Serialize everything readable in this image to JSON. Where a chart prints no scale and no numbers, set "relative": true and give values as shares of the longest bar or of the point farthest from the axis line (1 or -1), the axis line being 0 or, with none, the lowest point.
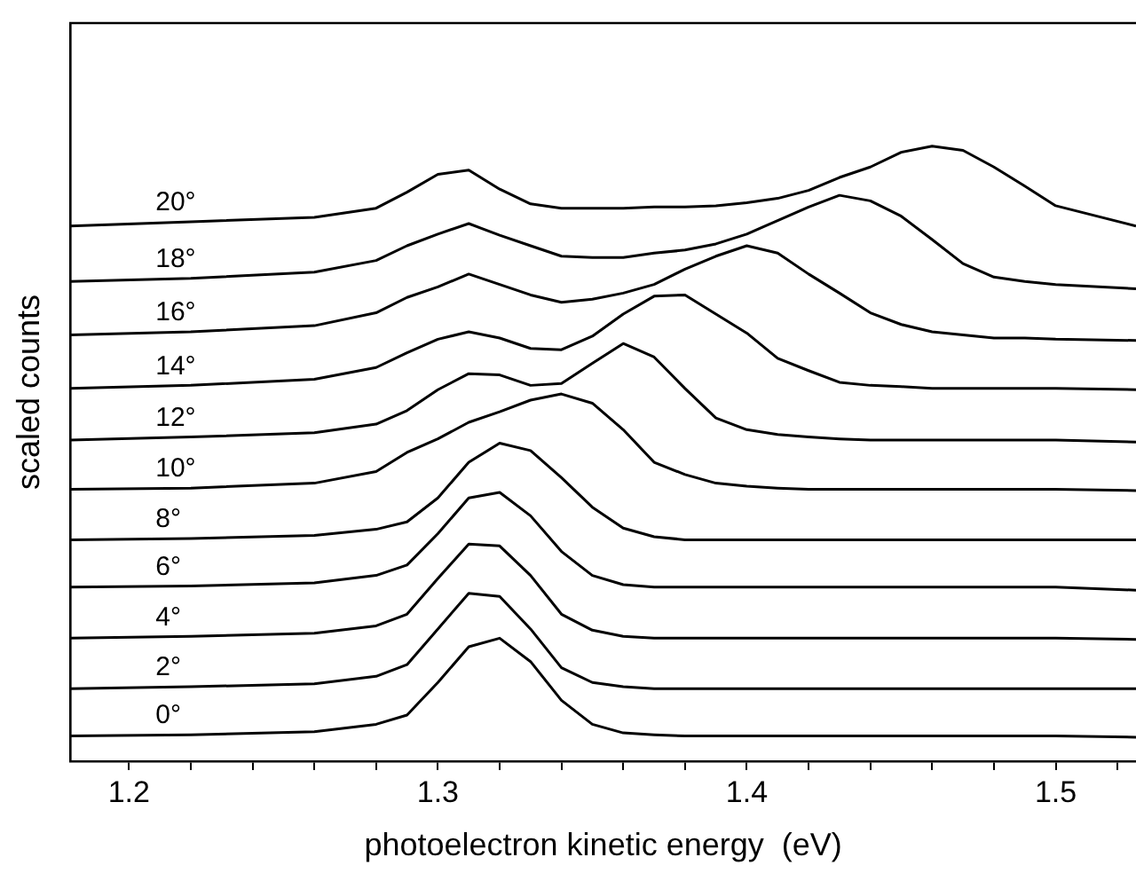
{
  "chart_data": {
    "type": "line",
    "relative": true,
    "xlabel": "photoelectron kinetic energy  (eV)",
    "ylabel": "scaled counts",
    "x": [
      1.181,
      1.22,
      1.26,
      1.28,
      1.29,
      1.3,
      1.31,
      1.32,
      1.33,
      1.34,
      1.35,
      1.36,
      1.37,
      1.38,
      1.39,
      1.4,
      1.41,
      1.42,
      1.43,
      1.44,
      1.45,
      1.46,
      1.47,
      1.48,
      1.49,
      1.5,
      1.526
    ],
    "xlim": [
      1.181,
      1.526
    ],
    "xticks": [
      1.2,
      {
        "value": 1.22,
        "label": null
      },
      {
        "value": 1.24,
        "label": null
      },
      {
        "value": 1.26,
        "label": null
      },
      {
        "value": 1.28,
        "label": null
      },
      1.3,
      {
        "value": 1.32,
        "label": null
      },
      {
        "value": 1.34,
        "label": null
      },
      {
        "value": 1.36,
        "label": null
      },
      {
        "value": 1.38,
        "label": null
      },
      1.4,
      {
        "value": 1.42,
        "label": null
      },
      {
        "value": 1.44,
        "label": null
      },
      {
        "value": 1.46,
        "label": null
      },
      {
        "value": 1.48,
        "label": null
      },
      1.5,
      {
        "value": 1.52,
        "label": null
      }
    ],
    "legend": false,
    "marker": "none",
    "line_style": "solid",
    "series": [
      {
        "name": "0°",
        "color": "#000000",
        "values": [
          0.041,
          0.043,
          0.048,
          0.06,
          0.075,
          0.128,
          0.186,
          0.2,
          0.162,
          0.099,
          0.06,
          0.046,
          0.043,
          0.041,
          0.041,
          0.041,
          0.041,
          0.041,
          0.041,
          0.041,
          0.041,
          0.041,
          0.041,
          0.041,
          0.041,
          0.041,
          0.039
        ]
      },
      {
        "name": "2°",
        "color": "#000000",
        "values": [
          0.118,
          0.121,
          0.126,
          0.138,
          0.157,
          0.215,
          0.273,
          0.268,
          0.215,
          0.152,
          0.128,
          0.121,
          0.118,
          0.118,
          0.118,
          0.118,
          0.118,
          0.118,
          0.118,
          0.118,
          0.118,
          0.118,
          0.118,
          0.118,
          0.118,
          0.118,
          0.118
        ]
      },
      {
        "name": "4°",
        "color": "#000000",
        "values": [
          0.2,
          0.203,
          0.208,
          0.22,
          0.239,
          0.297,
          0.353,
          0.35,
          0.302,
          0.239,
          0.213,
          0.203,
          0.2,
          0.2,
          0.2,
          0.2,
          0.2,
          0.2,
          0.2,
          0.2,
          0.2,
          0.2,
          0.2,
          0.2,
          0.2,
          0.2,
          0.198
        ]
      },
      {
        "name": "6°",
        "color": "#000000",
        "values": [
          0.283,
          0.285,
          0.29,
          0.302,
          0.319,
          0.37,
          0.428,
          0.437,
          0.399,
          0.341,
          0.302,
          0.287,
          0.283,
          0.283,
          0.283,
          0.283,
          0.283,
          0.283,
          0.283,
          0.283,
          0.283,
          0.283,
          0.283,
          0.283,
          0.283,
          0.283,
          0.278
        ]
      },
      {
        "name": "8°",
        "color": "#000000",
        "values": [
          0.36,
          0.362,
          0.367,
          0.377,
          0.389,
          0.428,
          0.486,
          0.517,
          0.505,
          0.461,
          0.413,
          0.379,
          0.365,
          0.36,
          0.36,
          0.36,
          0.36,
          0.36,
          0.36,
          0.36,
          0.36,
          0.36,
          0.36,
          0.36,
          0.36,
          0.36,
          0.36
        ]
      },
      {
        "name": "10°",
        "color": "#000000",
        "values": [
          0.442,
          0.444,
          0.452,
          0.471,
          0.502,
          0.524,
          0.551,
          0.568,
          0.587,
          0.597,
          0.582,
          0.539,
          0.486,
          0.466,
          0.452,
          0.447,
          0.444,
          0.442,
          0.442,
          0.442,
          0.442,
          0.442,
          0.442,
          0.442,
          0.442,
          0.442,
          0.44
        ]
      },
      {
        "name": "12°",
        "color": "#000000",
        "values": [
          0.522,
          0.527,
          0.534,
          0.548,
          0.57,
          0.604,
          0.63,
          0.628,
          0.611,
          0.614,
          0.647,
          0.679,
          0.657,
          0.606,
          0.558,
          0.539,
          0.531,
          0.527,
          0.524,
          0.522,
          0.522,
          0.522,
          0.522,
          0.522,
          0.522,
          0.522,
          0.519
        ]
      },
      {
        "name": "14°",
        "color": "#000000",
        "values": [
          0.606,
          0.611,
          0.621,
          0.64,
          0.664,
          0.686,
          0.698,
          0.688,
          0.671,
          0.669,
          0.691,
          0.727,
          0.756,
          0.758,
          0.727,
          0.696,
          0.655,
          0.635,
          0.616,
          0.611,
          0.609,
          0.606,
          0.606,
          0.606,
          0.606,
          0.606,
          0.604
        ]
      },
      {
        "name": "16°",
        "color": "#000000",
        "values": [
          0.693,
          0.698,
          0.708,
          0.729,
          0.754,
          0.771,
          0.792,
          0.775,
          0.758,
          0.746,
          0.751,
          0.761,
          0.775,
          0.8,
          0.821,
          0.838,
          0.826,
          0.792,
          0.761,
          0.729,
          0.71,
          0.698,
          0.693,
          0.688,
          0.688,
          0.686,
          0.684
        ]
      },
      {
        "name": "18°",
        "color": "#000000",
        "values": [
          0.78,
          0.785,
          0.795,
          0.814,
          0.838,
          0.857,
          0.874,
          0.855,
          0.838,
          0.821,
          0.819,
          0.819,
          0.826,
          0.831,
          0.841,
          0.857,
          0.879,
          0.901,
          0.92,
          0.911,
          0.886,
          0.848,
          0.809,
          0.787,
          0.78,
          0.775,
          0.768
        ]
      },
      {
        "name": "20°",
        "color": "#000000",
        "values": [
          0.87,
          0.877,
          0.884,
          0.899,
          0.925,
          0.954,
          0.961,
          0.93,
          0.906,
          0.899,
          0.899,
          0.899,
          0.901,
          0.901,
          0.903,
          0.908,
          0.915,
          0.928,
          0.949,
          0.966,
          0.99,
          1.0,
          0.993,
          0.966,
          0.935,
          0.903,
          0.87
        ]
      }
    ]
  }
}
